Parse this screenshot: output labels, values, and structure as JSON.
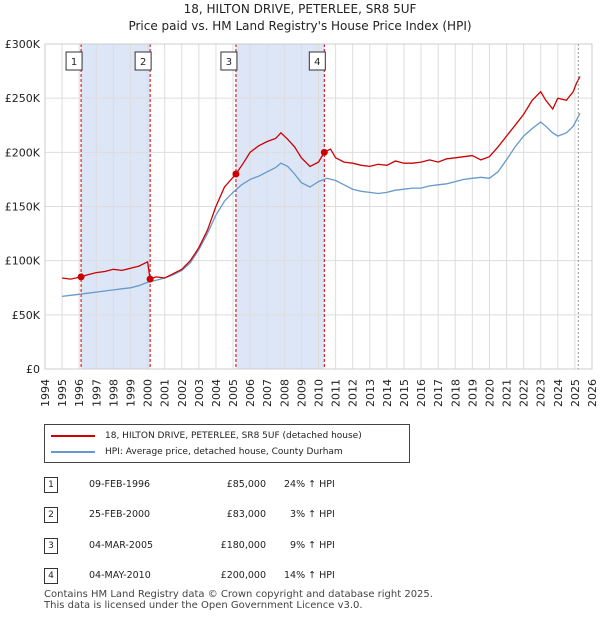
{
  "title": {
    "line1": "18, HILTON DRIVE, PETERLEE, SR8 5UF",
    "line2": "Price paid vs. HM Land Registry's House Price Index (HPI)"
  },
  "colors": {
    "property": "#cc0000",
    "hpi": "#6699cc",
    "band": "#dde6f7"
  },
  "chart_data": {
    "type": "line",
    "title": "Price paid vs. HM Land Registry's House Price Index (HPI)",
    "xlim": [
      1994,
      2026
    ],
    "ylim": [
      0,
      300000
    ],
    "x_ticks": [
      "1994",
      "1995",
      "1996",
      "1997",
      "1998",
      "1999",
      "2000",
      "2001",
      "2002",
      "2003",
      "2004",
      "2005",
      "2006",
      "2007",
      "2008",
      "2009",
      "2010",
      "2011",
      "2012",
      "2013",
      "2014",
      "2015",
      "2016",
      "2017",
      "2018",
      "2019",
      "2020",
      "2021",
      "2022",
      "2023",
      "2024",
      "2025",
      "2026"
    ],
    "y_ticks": [
      {
        "v": 0,
        "label": "£0"
      },
      {
        "v": 50000,
        "label": "£50K"
      },
      {
        "v": 100000,
        "label": "£100K"
      },
      {
        "v": 150000,
        "label": "£150K"
      },
      {
        "v": 200000,
        "label": "£200K"
      },
      {
        "v": 250000,
        "label": "£250K"
      },
      {
        "v": 300000,
        "label": "£300K"
      }
    ],
    "shaded_ranges": [
      [
        1996.11,
        2000.15
      ],
      [
        2005.17,
        2010.34
      ]
    ],
    "series": [
      {
        "name": "18, HILTON DRIVE, PETERLEE, SR8 5UF (detached house)",
        "x": [
          1995.0,
          1995.5,
          1996.11,
          1996.5,
          1997,
          1997.5,
          1998,
          1998.5,
          1999,
          1999.5,
          2000.0,
          2000.15,
          2000.5,
          2001,
          2001.5,
          2002,
          2002.5,
          2003,
          2003.5,
          2004,
          2004.5,
          2005.17,
          2005.6,
          2006,
          2006.5,
          2007,
          2007.5,
          2007.8,
          2008.2,
          2008.6,
          2009,
          2009.5,
          2010.0,
          2010.34,
          2010.7,
          2011,
          2011.5,
          2012,
          2012.5,
          2013,
          2013.5,
          2014,
          2014.5,
          2015,
          2015.5,
          2016,
          2016.5,
          2017,
          2017.5,
          2018,
          2018.5,
          2019,
          2019.5,
          2020,
          2020.5,
          2021,
          2021.5,
          2022,
          2022.5,
          2023,
          2023.3,
          2023.7,
          2024,
          2024.5,
          2024.9,
          2025.1,
          2025.3
        ],
        "values": [
          84000,
          83000,
          85000,
          87000,
          89000,
          90000,
          92000,
          91000,
          93000,
          95000,
          99000,
          83000,
          85000,
          84000,
          88000,
          92000,
          100000,
          112000,
          128000,
          150000,
          168000,
          180000,
          190000,
          200000,
          206000,
          210000,
          213000,
          218000,
          212000,
          205000,
          195000,
          187000,
          191000,
          200000,
          203000,
          195000,
          191000,
          190000,
          188000,
          187000,
          189000,
          188000,
          192000,
          190000,
          190000,
          191000,
          193000,
          191000,
          194000,
          195000,
          196000,
          197000,
          193000,
          196000,
          205000,
          215000,
          225000,
          235000,
          248000,
          256000,
          248000,
          240000,
          250000,
          248000,
          256000,
          264000,
          270000
        ]
      },
      {
        "name": "HPI: Average price, detached house, County Durham",
        "x": [
          1995.0,
          1995.5,
          1996,
          1996.5,
          1997,
          1997.5,
          1998,
          1998.5,
          1999,
          1999.5,
          2000,
          2000.5,
          2001,
          2001.5,
          2002,
          2002.5,
          2003,
          2003.5,
          2004,
          2004.5,
          2005,
          2005.5,
          2006,
          2006.5,
          2007,
          2007.5,
          2007.8,
          2008.2,
          2008.6,
          2009,
          2009.5,
          2010,
          2010.5,
          2011,
          2011.5,
          2012,
          2012.5,
          2013,
          2013.5,
          2014,
          2014.5,
          2015,
          2015.5,
          2016,
          2016.5,
          2017,
          2017.5,
          2018,
          2018.5,
          2019,
          2019.5,
          2020,
          2020.5,
          2021,
          2021.5,
          2022,
          2022.5,
          2023,
          2023.3,
          2023.7,
          2024,
          2024.5,
          2024.9,
          2025.1,
          2025.3
        ],
        "values": [
          67000,
          68000,
          69000,
          70000,
          71000,
          72000,
          73000,
          74000,
          75000,
          77000,
          80000,
          82000,
          84000,
          87000,
          91000,
          98000,
          110000,
          125000,
          142000,
          155000,
          163000,
          170000,
          175000,
          178000,
          182000,
          186000,
          190000,
          187000,
          180000,
          172000,
          168000,
          173000,
          176000,
          174000,
          170000,
          166000,
          164000,
          163000,
          162000,
          163000,
          165000,
          166000,
          167000,
          167000,
          169000,
          170000,
          171000,
          173000,
          175000,
          176000,
          177000,
          176000,
          182000,
          193000,
          205000,
          215000,
          222000,
          228000,
          224000,
          218000,
          215000,
          218000,
          224000,
          230000,
          236000
        ]
      }
    ],
    "sales": [
      {
        "label": "1",
        "x": 1996.11,
        "value": 85000
      },
      {
        "label": "2",
        "x": 2000.15,
        "value": 83000
      },
      {
        "label": "3",
        "x": 2005.17,
        "value": 180000
      },
      {
        "label": "4",
        "x": 2010.34,
        "value": 200000
      }
    ]
  },
  "legend": {
    "property": "18, HILTON DRIVE, PETERLEE, SR8 5UF (detached house)",
    "hpi": "HPI: Average price, detached house, County Durham"
  },
  "table": [
    {
      "num": "1",
      "date": "09-FEB-1996",
      "price": "£85,000",
      "hpi": "24% ↑ HPI"
    },
    {
      "num": "2",
      "date": "25-FEB-2000",
      "price": "£83,000",
      "hpi": "  3% ↑ HPI"
    },
    {
      "num": "3",
      "date": "04-MAR-2005",
      "price": "£180,000",
      "hpi": "  9% ↑ HPI"
    },
    {
      "num": "4",
      "date": "04-MAY-2010",
      "price": "£200,000",
      "hpi": "14% ↑ HPI"
    }
  ],
  "footer": {
    "line1": "Contains HM Land Registry data © Crown copyright and database right 2025.",
    "line2": "This data is licensed under the Open Government Licence v3.0."
  }
}
